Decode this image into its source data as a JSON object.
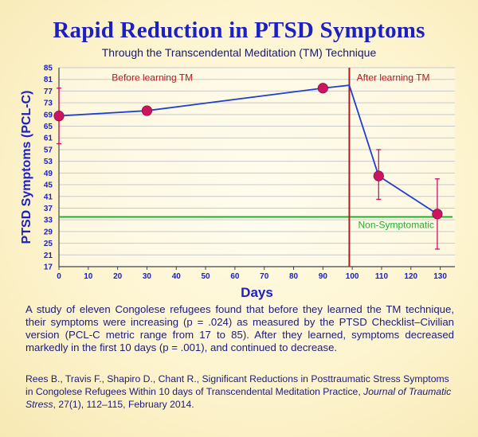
{
  "header": {
    "title": "Rapid Reduction in PTSD Symptoms",
    "subtitle": "Through the Transcendental Meditation (TM) Technique"
  },
  "chart_data": {
    "type": "line",
    "xlabel": "Days",
    "ylabel": "PTSD Symptoms  (PCL-C)",
    "xlim": [
      0,
      135
    ],
    "ylim": [
      17,
      85
    ],
    "x_ticks": [
      0,
      10,
      20,
      30,
      40,
      50,
      60,
      70,
      80,
      90,
      100,
      110,
      120,
      130
    ],
    "y_ticks": [
      17,
      21,
      25,
      29,
      33,
      37,
      41,
      45,
      49,
      53,
      57,
      61,
      65,
      69,
      73,
      77,
      81,
      85
    ],
    "grid": true,
    "series": [
      {
        "x": [
          0,
          30,
          90,
          99,
          109,
          129
        ],
        "y": [
          68.5,
          70.3,
          78.0,
          79.0,
          48.0,
          35.0
        ],
        "color": "#1f3fd1",
        "markers_at": [
          0,
          30,
          90,
          109,
          129
        ]
      }
    ],
    "error_bars": [
      {
        "x": 0,
        "low": 59,
        "high": 78
      },
      {
        "x": 109,
        "low": 40,
        "high": 57
      },
      {
        "x": 129,
        "low": 23,
        "high": 47
      }
    ],
    "vertical_line": {
      "x": 99,
      "color": "#b01c22"
    },
    "threshold": {
      "y": 34,
      "label": "Non-Symptomatic",
      "color": "#22b02a"
    },
    "annotations": [
      {
        "text": "Before learning TM",
        "color": "#b01c22"
      },
      {
        "text": "After learning TM",
        "color": "#b01c22"
      }
    ],
    "colors": {
      "marker": "#cc1460",
      "axis_text": "#1b1fc4",
      "line": "#1f3fd1",
      "grid": "#c9c9c9"
    }
  },
  "caption": "A study of eleven Congolese refugees found that before they learned the TM technique, their symptoms were increasing (p = .024) as measured by the PTSD Checklist–Civilian version (PCL-C metric  range from 17 to 85). After they learned, symptoms decreased markedly in the first 10 days (p = .001),  and continued to decrease.",
  "citation": {
    "text": "Rees B., Travis F., Shapiro D., Chant R., Significant Reductions in Posttraumatic Stress Symptoms in Congolese Refugees Within 10 days of Transcendental Meditation Practice, ",
    "journal": "Journal of Traumatic Stress",
    "details": ", 27(1), 112–115, February 2014."
  }
}
